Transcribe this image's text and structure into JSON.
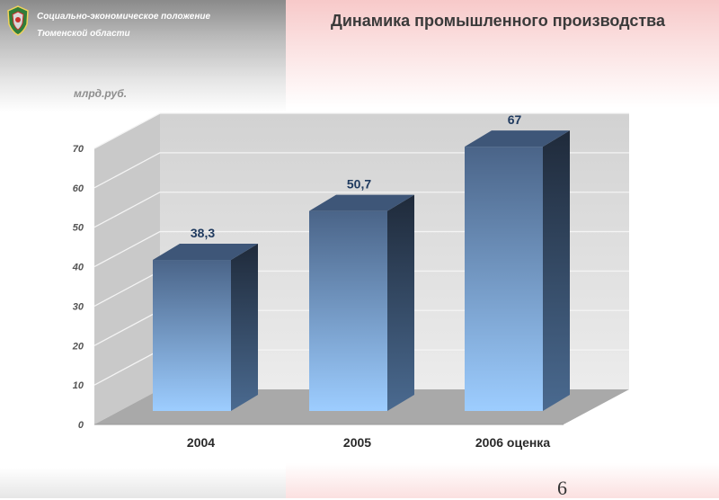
{
  "header": {
    "org_line1": "Социально-экономическое положение",
    "org_line2": "Тюменской области",
    "title": "Динамика промышленного производства"
  },
  "icons": {
    "logo": "coat-of-arms-icon"
  },
  "footer": {
    "page_number": "6"
  },
  "colors": {
    "bar_top": "#4a6488",
    "bar_bottom": "#9dcdff",
    "label": "#1f3a5f",
    "wall": "#dcdcdc",
    "floor": "#a9a9a9"
  },
  "chart_data": {
    "type": "bar",
    "style": "3d",
    "title": "",
    "ylabel": "млрд.руб.",
    "categories": [
      "2004",
      "2005",
      "2006 оценка"
    ],
    "values": [
      38.3,
      50.7,
      67
    ],
    "value_labels": [
      "38,3",
      "50,7",
      "67"
    ],
    "yticks": [
      0,
      10,
      20,
      30,
      40,
      50,
      60,
      70
    ],
    "ylim": [
      0,
      70
    ],
    "grid": true,
    "legend": "none"
  }
}
